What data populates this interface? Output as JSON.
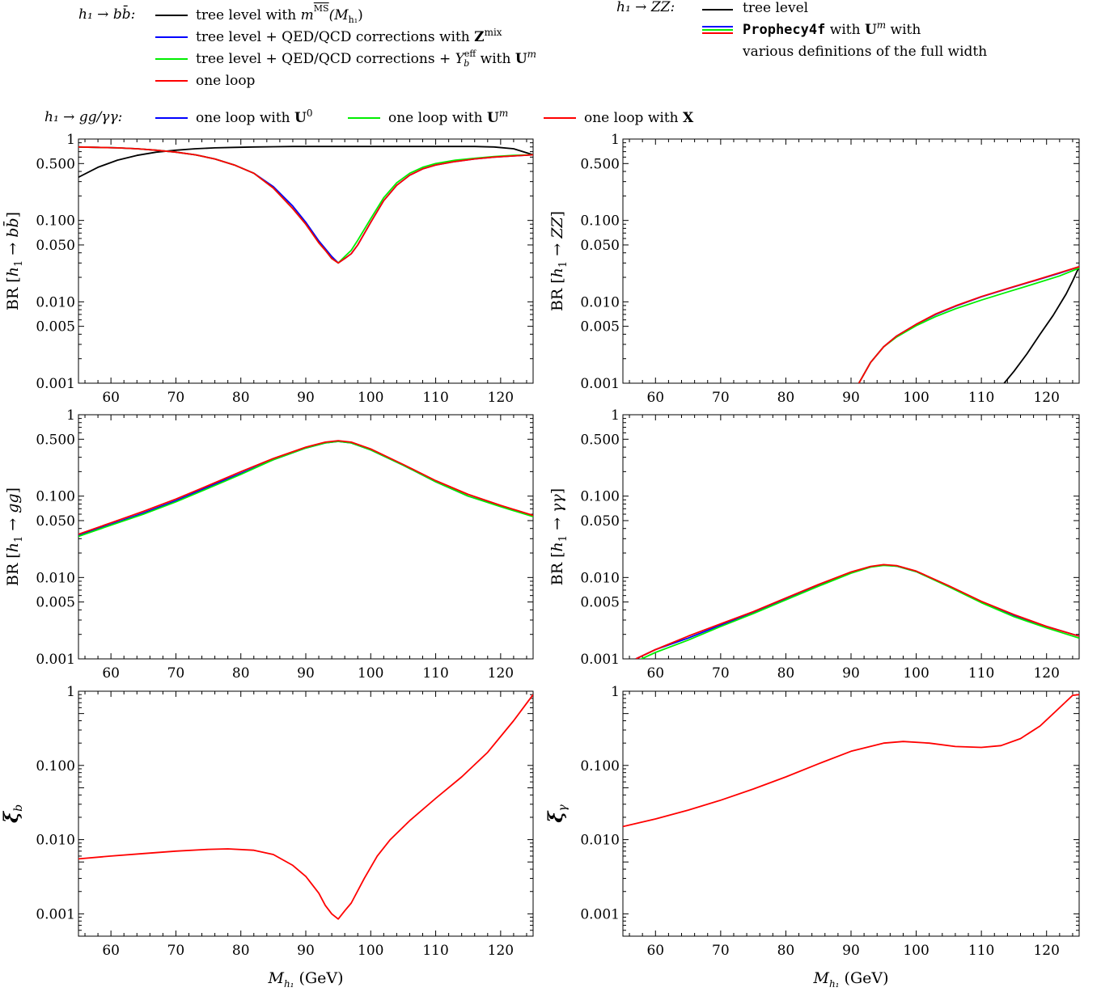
{
  "legend": {
    "bb": {
      "process": "h₁ → bb̄:",
      "entries": [
        {
          "label": "tree level with m_q^MS(M_h₁)",
          "parts": [
            "tree level with ",
            "m",
            "MS",
            "(M",
            "h₁",
            ")"
          ],
          "color": "#000000"
        },
        {
          "label": "tree level + QED/QCD corrections with Z^mix",
          "parts": [
            "tree level + QED/QCD corrections with ",
            "Z",
            "mix"
          ],
          "color": "#0000ff"
        },
        {
          "label": "tree level + QED/QCD corrections + Y_b^eff with U^m",
          "parts": [
            "tree level + QED/QCD corrections + ",
            "Y",
            "eff",
            "b",
            " with ",
            "U",
            "m"
          ],
          "color": "#00ee00"
        },
        {
          "label": "one loop",
          "parts": [
            "one loop"
          ],
          "color": "#ff0000"
        }
      ]
    },
    "zz": {
      "process": "h₁ → ZZ:",
      "entries": [
        {
          "label": "tree level",
          "color": "#000000"
        },
        {
          "label": "Prophecy4f with U^m with",
          "parts": [
            "Prophecy4f",
            " with ",
            "U",
            "m",
            " with"
          ],
          "colors": [
            "#0000ff",
            "#00ee00",
            "#ff0000"
          ]
        },
        {
          "label": "various definitions of the full width"
        }
      ]
    },
    "gg": {
      "process": "h₁ → gg/γγ:",
      "entries": [
        {
          "label": "one loop with U^0",
          "parts": [
            "one loop with ",
            "U",
            "0"
          ],
          "color": "#0000ff"
        },
        {
          "label": "one loop with U^m",
          "parts": [
            "one loop with ",
            "U",
            "m"
          ],
          "color": "#00ee00"
        },
        {
          "label": "one loop with X",
          "parts": [
            "one loop with ",
            "X"
          ],
          "color": "#ff0000"
        }
      ]
    }
  },
  "axes": {
    "x_label": "M_h₁ (GeV)",
    "x_label_parts": [
      "M",
      "h₁",
      " (GeV)"
    ],
    "x_range": [
      55,
      125
    ],
    "x_ticks": [
      "60",
      "70",
      "80",
      "90",
      "100",
      "110",
      "120"
    ],
    "y_ticks_br": [
      "1",
      "0.500",
      "0.100",
      "0.050",
      "0.010",
      "0.005",
      "0.001"
    ],
    "y_ticks_xi": [
      "1",
      "0.100",
      "0.010",
      "0.001"
    ]
  },
  "chart_data": [
    {
      "id": "bb",
      "type": "line",
      "log_y": true,
      "ylim": [
        0.001,
        1
      ],
      "ylabel": "BR [h₁ → bb̄]",
      "ylabel_parts": [
        "BR [",
        "h",
        "1",
        " → ",
        "bb̄",
        "]"
      ],
      "x": [
        55,
        58,
        61,
        64,
        67,
        70,
        73,
        76,
        79,
        82,
        85,
        88,
        90,
        92,
        93,
        94,
        95,
        96,
        97,
        98,
        100,
        102,
        104,
        106,
        108,
        110,
        113,
        116,
        119,
        122,
        125
      ],
      "series": [
        {
          "color": "#000000",
          "values": [
            0.34,
            0.45,
            0.55,
            0.63,
            0.69,
            0.73,
            0.76,
            0.78,
            0.79,
            0.8,
            0.805,
            0.81,
            0.81,
            0.81,
            0.81,
            0.81,
            0.81,
            0.81,
            0.81,
            0.81,
            0.81,
            0.81,
            0.81,
            0.81,
            0.81,
            0.81,
            0.81,
            0.81,
            0.8,
            0.76,
            0.64
          ]
        },
        {
          "color": "#0000ff",
          "values": [
            0.8,
            0.79,
            0.78,
            0.76,
            0.73,
            0.69,
            0.64,
            0.57,
            0.48,
            0.38,
            0.26,
            0.15,
            0.095,
            0.056,
            0.045,
            0.036,
            0.03,
            0.034,
            0.039,
            0.05,
            0.095,
            0.175,
            0.27,
            0.36,
            0.43,
            0.48,
            0.53,
            0.57,
            0.6,
            0.62,
            0.64
          ]
        },
        {
          "color": "#00ee00",
          "values": [
            0.8,
            0.79,
            0.78,
            0.76,
            0.73,
            0.69,
            0.64,
            0.57,
            0.48,
            0.38,
            0.25,
            0.14,
            0.09,
            0.053,
            0.043,
            0.034,
            0.03,
            0.036,
            0.043,
            0.057,
            0.105,
            0.19,
            0.29,
            0.38,
            0.45,
            0.5,
            0.55,
            0.58,
            0.61,
            0.63,
            0.64
          ]
        },
        {
          "color": "#ff0000",
          "values": [
            0.8,
            0.79,
            0.78,
            0.76,
            0.73,
            0.69,
            0.64,
            0.57,
            0.48,
            0.38,
            0.25,
            0.14,
            0.09,
            0.053,
            0.043,
            0.034,
            0.03,
            0.034,
            0.039,
            0.05,
            0.095,
            0.175,
            0.27,
            0.36,
            0.43,
            0.48,
            0.53,
            0.57,
            0.6,
            0.62,
            0.64
          ]
        }
      ]
    },
    {
      "id": "zz",
      "type": "line",
      "log_y": true,
      "ylim": [
        0.001,
        1
      ],
      "ylabel": "BR [h₁ → ZZ]",
      "ylabel_parts": [
        "BR [",
        "h",
        "1",
        " → ",
        "ZZ",
        "]"
      ],
      "x": [
        91.2,
        93,
        95,
        97,
        100,
        103,
        106,
        110,
        114,
        118,
        122,
        125
      ],
      "series": [
        {
          "color": "#000000",
          "x": [
            113.5,
            115,
            117,
            119,
            121,
            123,
            124,
            125
          ],
          "values": [
            0.001,
            0.0014,
            0.0023,
            0.004,
            0.0068,
            0.0125,
            0.018,
            0.027
          ]
        },
        {
          "color": "#0000ff",
          "values": [
            0.001,
            0.0018,
            0.0028,
            0.0038,
            0.0053,
            0.007,
            0.0088,
            0.0115,
            0.0145,
            0.018,
            0.0225,
            0.027
          ]
        },
        {
          "color": "#00ee00",
          "values": [
            0.001,
            0.0018,
            0.0028,
            0.0037,
            0.0051,
            0.0066,
            0.0082,
            0.0105,
            0.0132,
            0.0165,
            0.0208,
            0.026
          ]
        },
        {
          "color": "#ff0000",
          "values": [
            0.001,
            0.0018,
            0.0028,
            0.0038,
            0.0053,
            0.0071,
            0.0089,
            0.0116,
            0.0146,
            0.0182,
            0.0228,
            0.027
          ]
        }
      ]
    },
    {
      "id": "gg",
      "type": "line",
      "log_y": true,
      "ylim": [
        0.001,
        1
      ],
      "ylabel": "BR [h₁ → gg]",
      "ylabel_parts": [
        "BR [",
        "h",
        "1",
        " → ",
        "gg",
        "]"
      ],
      "x": [
        55,
        60,
        65,
        70,
        75,
        80,
        85,
        90,
        93,
        95,
        97,
        100,
        105,
        110,
        115,
        120,
        125
      ],
      "series": [
        {
          "color": "#0000ff",
          "values": [
            0.033,
            0.045,
            0.062,
            0.088,
            0.13,
            0.19,
            0.28,
            0.39,
            0.45,
            0.47,
            0.45,
            0.37,
            0.24,
            0.15,
            0.1,
            0.075,
            0.057
          ]
        },
        {
          "color": "#00ee00",
          "values": [
            0.032,
            0.044,
            0.06,
            0.085,
            0.125,
            0.185,
            0.28,
            0.39,
            0.45,
            0.47,
            0.45,
            0.37,
            0.24,
            0.15,
            0.1,
            0.074,
            0.056
          ]
        },
        {
          "color": "#ff0000",
          "values": [
            0.034,
            0.047,
            0.065,
            0.092,
            0.135,
            0.2,
            0.29,
            0.4,
            0.46,
            0.48,
            0.46,
            0.38,
            0.245,
            0.155,
            0.105,
            0.077,
            0.058
          ]
        }
      ]
    },
    {
      "id": "aa",
      "type": "line",
      "log_y": true,
      "ylim": [
        0.001,
        1
      ],
      "ylabel": "BR [h₁ → γγ]",
      "ylabel_parts": [
        "BR [",
        "h",
        "1",
        " → ",
        "γγ",
        "]"
      ],
      "x": [
        57,
        60,
        65,
        70,
        75,
        80,
        85,
        90,
        93,
        95,
        97,
        100,
        105,
        110,
        115,
        120,
        125
      ],
      "series": [
        {
          "color": "#0000ff",
          "values": [
            0.001,
            0.0013,
            0.0018,
            0.0026,
            0.0037,
            0.0055,
            0.008,
            0.0115,
            0.0135,
            0.0142,
            0.0138,
            0.0118,
            0.0078,
            0.005,
            0.0034,
            0.0025,
            0.0019
          ]
        },
        {
          "color": "#00ee00",
          "values": [
            0.00093,
            0.0012,
            0.0017,
            0.0025,
            0.0036,
            0.0053,
            0.0078,
            0.0113,
            0.0134,
            0.0141,
            0.0138,
            0.0118,
            0.0077,
            0.0049,
            0.0033,
            0.0024,
            0.0018
          ]
        },
        {
          "color": "#ff0000",
          "values": [
            0.001,
            0.0013,
            0.0019,
            0.0027,
            0.0038,
            0.0056,
            0.0082,
            0.0117,
            0.0137,
            0.0144,
            0.014,
            0.012,
            0.0079,
            0.0051,
            0.0035,
            0.0025,
            0.0019
          ]
        }
      ]
    },
    {
      "id": "xib",
      "type": "line",
      "log_y": true,
      "ylim": [
        0.0005,
        1
      ],
      "ylabel": "ξ_b",
      "ylabel_parts": [
        "ξ",
        "b"
      ],
      "x": [
        55,
        60,
        65,
        70,
        75,
        78,
        82,
        85,
        88,
        90,
        92,
        93,
        94,
        95,
        96,
        97,
        99,
        101,
        103,
        106,
        110,
        114,
        118,
        122,
        125
      ],
      "series": [
        {
          "color": "#ff0000",
          "values": [
            0.0055,
            0.006,
            0.0065,
            0.007,
            0.0074,
            0.0075,
            0.0072,
            0.0063,
            0.0045,
            0.0032,
            0.0019,
            0.0013,
            0.001,
            0.00085,
            0.0011,
            0.0014,
            0.003,
            0.006,
            0.01,
            0.018,
            0.036,
            0.07,
            0.15,
            0.4,
            0.9
          ]
        }
      ]
    },
    {
      "id": "xia",
      "type": "line",
      "log_y": true,
      "ylim": [
        0.0005,
        1
      ],
      "ylabel": "ξ_γ",
      "ylabel_parts": [
        "ξ",
        "γ"
      ],
      "x": [
        55,
        60,
        65,
        70,
        75,
        80,
        85,
        90,
        95,
        98,
        102,
        106,
        110,
        113,
        116,
        119,
        122,
        124,
        125
      ],
      "series": [
        {
          "color": "#ff0000",
          "values": [
            0.015,
            0.019,
            0.025,
            0.034,
            0.048,
            0.07,
            0.105,
            0.155,
            0.2,
            0.21,
            0.2,
            0.18,
            0.175,
            0.185,
            0.23,
            0.34,
            0.6,
            0.88,
            0.9
          ]
        }
      ]
    }
  ]
}
